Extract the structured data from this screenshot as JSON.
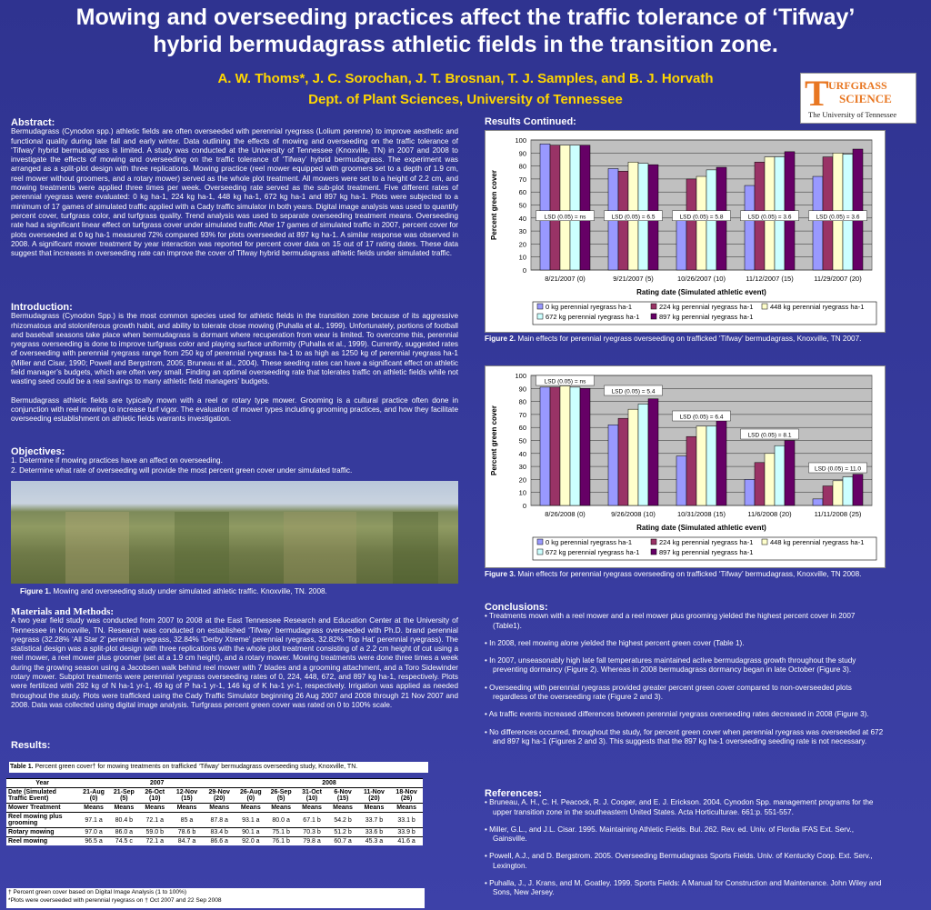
{
  "header": {
    "title_line1": "Mowing and overseeding practices affect the traffic tolerance of ‘Tifway’",
    "title_line2": "hybrid bermudagrass athletic fields in the transition zone.",
    "authors": "A. W. Thoms*, J. C. Sorochan, J. T. Brosnan, T. J. Samples, and B. J. Horvath",
    "dept": "Dept. of Plant Sciences, University of Tennessee"
  },
  "logo": {
    "big_letter": "T",
    "line1": "URFGRASS",
    "line2": "SCIENCE",
    "line3": "The University of Tennessee"
  },
  "abstract": {
    "heading": "Abstract",
    "text": "Bermudagrass (Cynodon spp.) athletic fields are often overseeded with perennial ryegrass (Lolium perenne) to improve aesthetic and functional quality during late fall and early winter.  Data outlining the effects of mowing and overseeding on the traffic tolerance of ‘Tifway’ hybrid bermudagrass is limited. A study was conducted at the University of Tennessee (Knoxville, TN) in 2007 and 2008 to investigate the effects of mowing and overseeding on the traffic tolerance of ‘Tifway’ hybrid bermudagrass. The experiment was arranged as a split-plot design with three replications.  Mowing practice (reel mower equipped with groomers set to a depth of 1.9 cm,   reel mower without groomers, and a rotary mower) served as the whole plot treatment.  All mowers were set to a height of 2.2 cm, and mowing treatments were applied three times per week. Overseeding rate served as the sub-plot treatment. Five different rates of perennial ryegrass were evaluated: 0 kg ha-1, 224 kg ha-1, 448 kg ha-1, 672 kg ha-1 and 897 kg ha-1. Plots were subjected to a minimum of 17 games of simulated traffic applied with a Cady traffic simulator in both years.  Digital image analysis was used to quantify percent cover, turfgrass color, and turfgrass quality. Trend analysis was used to separate overseeding treatment means. Overseeding rate had a significant linear effect on turfgrass cover under simulated traffic After 17 games of simulated traffic in 2007, percent cover for plots overseeded at 0 kg ha-1 measured 72% compared 93% for plots overseeded at 897 kg ha-1. A similar response was observed in 2008. A significant mower treatment by year interaction was reported for percent cover data on 15 out of 17 rating dates. These data suggest that increases in overseeding rate can improve the cover of Tifway hybrid bermudagrass athletic fields under simulated traffic."
  },
  "introduction": {
    "heading": "Introduction:",
    "p1": "Bermudagrass (Cynodon Spp.) is the most common species used for athletic fields in the transition zone because of its aggressive rhizomatous and stoloniferous growth habit, and ability to tolerate close mowing (Puhalla et al., 1999). Unfortunately, portions of football and baseball seasons take place when bermudagrass is dormant where recuperation from wear is limited.  To overcome this, perennial ryegrass overseeding is done to improve turfgrass color and playing surface uniformity (Puhalla et al., 1999).  Currently, suggested rates of overseeding with perennial ryegrass range from 250 kg of perennial ryegrass ha-1 to as high as 1250 kg of perennial ryegrass ha-1 (Miller and Cisar, 1990; Powell and Bergstrom, 2005; Bruneau et al., 2004).  These seeding rates can have a significant effect on athletic field manager’s budgets, which are often very small.  Finding an optimal overseeding rate that tolerates traffic on athletic fields while not wasting seed could be a real savings to many athletic field managers’ budgets.",
    "p2": "Bermudagrass athletic fields are typically mown with a reel or rotary type mower. Grooming is a cultural practice often done in conjunction with reel mowing to increase turf vigor. The evaluation of mower types including grooming practices, and how they facilitate overseeding establishment on athletic fields warrants investigation."
  },
  "objectives": {
    "heading": "Objectives:",
    "items": [
      "1.  Determine if mowing practices have an affect on overseeding.",
      "2.  Determine what rate of overseeding will provide the most percent green cover under simulated traffic."
    ]
  },
  "figure1": {
    "label": "Figure 1.",
    "caption": " Mowing and overseeding study under simulated athletic traffic. Knoxville, TN. 2008."
  },
  "methods": {
    "heading": "Materials and Methods:",
    "text": "A two year field study was conducted from 2007 to 2008 at the East Tennessee Research and Education Center at the University of Tennessee in Knoxville, TN. Research was conducted on established ‘Tifway’ bermudagrass overseeded with Ph.D. brand perennial ryegrass (32.28% ‘All Star 2’ perennial ryegrass, 32.84% ‘Derby Xtreme’ perennial ryegrass, 32.82% ‘Top Hat’ perennial ryegrass). The statistical design was a split-plot design with three replications with the whole plot treatment consisting of a 2.2 cm height of cut using a reel mower, a reel mower plus groomer (set at a 1.9 cm height), and a rotary mower. Mowing treatments were done three times a week during the growing season using a Jacobsen walk behind reel mower with 7 blades and a grooming attachment, and  a Toro Sidewinder rotary mower. Subplot treatments were perennial ryegrass overseeding rates of 0, 224, 448, 672, and  897 kg ha-1, respectively. Plots were fertilized with 292 kg of N ha-1 yr-1, 49 kg of P ha-1 yr-1, 146 kg of K ha-1 yr-1, respectively. Irrigation was applied as needed throughout the study. Plots were trafficked using the Cady Traffic Simulator beginning 26 Aug 2007 and 2008 through 21 Nov 2007 and 2008. Data was collected using digital image analysis. Turfgrass percent green cover was rated on 0 to 100% scale."
  },
  "results": {
    "heading": "Results:",
    "table_caption_label": "Table 1.",
    "table_caption": " Percent green cover† for mowing treatments on trafficked ‘Tifway’ bermudagrass overseeding study, Knoxville, TN.",
    "year_label": "Year",
    "year1": "2007",
    "year2": "2008",
    "date_label": "Date (Simulated Traffic Event)",
    "dates": [
      "21-Aug (0)",
      "21-Sep (5)",
      "26-Oct (10)",
      "12-Nov (15)",
      "29-Nov (20)",
      "26-Aug (0)",
      "26-Sep (5)",
      "31-Oct (10)",
      "6-Nov (15)",
      "11-Nov (20)",
      "18-Nov (26)"
    ],
    "mt_label": "Mower Treatment",
    "means_label": "Means",
    "rows": [
      {
        "name": "Reel mowing plus grooming",
        "vals": [
          "97.1 a",
          "80.4 b",
          "72.1 a",
          "85 a",
          "87.8 a",
          "93.1 a",
          "80.0 a",
          "67.1 b",
          "54.2 b",
          "33.7 b",
          "33.1 b"
        ]
      },
      {
        "name": "Rotary mowing",
        "vals": [
          "97.0 a",
          "86.0 a",
          "59.0 b",
          "78.6 b",
          "83.4 b",
          "90.1 a",
          "75.1 b",
          "70.3 b",
          "51.2 b",
          "33.6 b",
          "33.9 b"
        ]
      },
      {
        "name": "Reel mowing",
        "vals": [
          "96.5 a",
          "74.5 c",
          "72.1 a",
          "84.7 a",
          "86.6 a",
          "92.0 a",
          "76.1 b",
          "79.8 a",
          "60.7 a",
          "45.3 a",
          "41.6 a"
        ]
      }
    ],
    "note1": "† Percent green cover based on Digital Image Analysis (1 to 100%)",
    "note2": "*Plots were overseeded with perennial ryegrass on † Oct 2007 and 22 Sep 2008"
  },
  "results_continued": {
    "heading": "Results Continued:"
  },
  "figure2": {
    "label": "Figure 2.",
    "caption": " Main effects for perennial ryegrass overseeding on trafficked ‘Tifway’ bermudagrass, Knoxville, TN 2007."
  },
  "figure3": {
    "label": "Figure 3.",
    "caption": " Main effects for perennial ryegrass overseeding on trafficked ‘Tifway’ bermudagrass, Knoxville, TN 2008."
  },
  "conclusions": {
    "heading": "Conclusions:",
    "items": [
      "• Treatments mown with a reel mower and a reel mower plus grooming yielded the highest percent cover in 2007 (Table1).",
      "• In 2008, reel mowing alone yielded the highest percent green cover (Table 1).",
      "• In 2007, unseasonably high late fall temperatures maintained active bermudagrass growth throughout the study preventing dormancy (Figure 2). Whereas in 2008 bermudagrass dormancy began in late October (Figure 3).",
      "• Overseeding with perennial ryegrass provided greater percent green cover compared to non-overseeded plots regardless of the overseeding rate (Figure 2 and 3).",
      "• As traffic events increased differences between perennial ryegrass overseeding rates decreased in 2008 (Figure 3).",
      "• No differences occurred, throughout the study, for percent green cover when perennial ryegrass was overseeded at 672 and 897 kg ha-1  (Figures 2 and 3). This suggests that the 897 kg ha-1 overseeding seeding rate is not necessary."
    ]
  },
  "references": {
    "heading": "References:",
    "items": [
      "• Bruneau, A. H., C. H. Peacock, R. J. Cooper, and E. J. Erickson. 2004. Cynodon Spp. management programs for the upper transition zone in the southeastern United States. Acta Horticulturae. 661:p. 551-557.",
      "• Miller, G.L., and J.L. Cisar. 1995. Maintaining Athletic Fields. Bul. 262. Rev. ed. Univ. of Flordia IFAS Ext. Serv., Gainsville.",
      "• Powell, A.J., and D. Bergstrom. 2005. Overseeding Bermudagrass Sports Fields. Univ. of Kentucky Coop. Ext. Serv., Lexington.",
      "• Puhalla, J., J. Krans, and M. Goatley. 1999. Sports Fields: A Manual for Construction and Maintenance. John Wiley and Sons, New Jersey."
    ]
  },
  "chart_data": [
    {
      "type": "bar",
      "ylabel": "Percent green cover",
      "xlabel": "Rating date (Simulated athletic event)",
      "ylim": [
        0,
        100
      ],
      "yticks": [
        0,
        10,
        20,
        30,
        40,
        50,
        60,
        70,
        80,
        90,
        100
      ],
      "grid": true,
      "legend": "bottom",
      "categories": [
        "8/21/2007 (0)",
        "9/21/2007 (5)",
        "10/26/2007 (10)",
        "11/12/2007 (15)",
        "11/29/2007 (20)"
      ],
      "series": [
        {
          "name": "0 kg perennial ryegrass ha-1",
          "color": "#9999ff",
          "values": [
            97,
            78,
            41,
            65,
            72
          ]
        },
        {
          "name": "224 kg perennial ryegrass ha-1",
          "color": "#993366",
          "values": [
            96,
            76,
            70,
            83,
            87
          ]
        },
        {
          "name": "448 kg perennial ryegrass ha-1",
          "color": "#ffffcc",
          "values": [
            96,
            83,
            72,
            87,
            90
          ]
        },
        {
          "name": "672 kg perennial ryegrass  ha-1",
          "color": "#ccffff",
          "values": [
            96,
            82,
            77,
            87,
            89
          ]
        },
        {
          "name": "897 kg perennial ryegrass ha-1",
          "color": "#660066",
          "values": [
            96,
            81,
            79,
            91,
            93
          ]
        }
      ],
      "annotations": [
        "LSD (0.05) = ns",
        "LSD (0.05) = 6.5",
        "LSD (0.05) = 5.8",
        "LSD (0.05) = 3.6",
        "LSD (0.05) = 3.6"
      ]
    },
    {
      "type": "bar",
      "ylabel": "Percent green cover",
      "xlabel": "Rating date (Simulated athletic event)",
      "ylim": [
        0,
        100
      ],
      "yticks": [
        0,
        10,
        20,
        30,
        40,
        50,
        60,
        70,
        80,
        90,
        100
      ],
      "grid": true,
      "legend": "bottom",
      "categories": [
        "8/26/2008 (0)",
        "9/26/2008 (10)",
        "10/31/2008 (15)",
        "11/6/2008 (20)",
        "11/11/2008 (25)"
      ],
      "series": [
        {
          "name": "0 kg perennial ryegrass ha-1",
          "color": "#9999ff",
          "values": [
            91,
            62,
            38,
            20,
            5
          ]
        },
        {
          "name": "224 kg perennial ryegrass ha-1",
          "color": "#993366",
          "values": [
            91,
            67,
            53,
            33,
            15
          ]
        },
        {
          "name": "448 kg perennial ryegrass ha-1",
          "color": "#ffffcc",
          "values": [
            92,
            74,
            61,
            40,
            19
          ]
        },
        {
          "name": "672 kg perennial ryegrass  ha-1",
          "color": "#ccffff",
          "values": [
            91,
            78,
            61,
            46,
            22
          ]
        },
        {
          "name": "897 kg perennial ryegrass ha-1",
          "color": "#660066",
          "values": [
            90,
            82,
            66,
            50,
            24
          ]
        }
      ],
      "annotations": [
        "LSD (0.05) = ns",
        "LSD (0.05) = 5.4",
        "LSD (0.05) = 6.4",
        "LSD (0.05) = 8.1",
        "LSD (0.05) = 11.0"
      ]
    }
  ]
}
